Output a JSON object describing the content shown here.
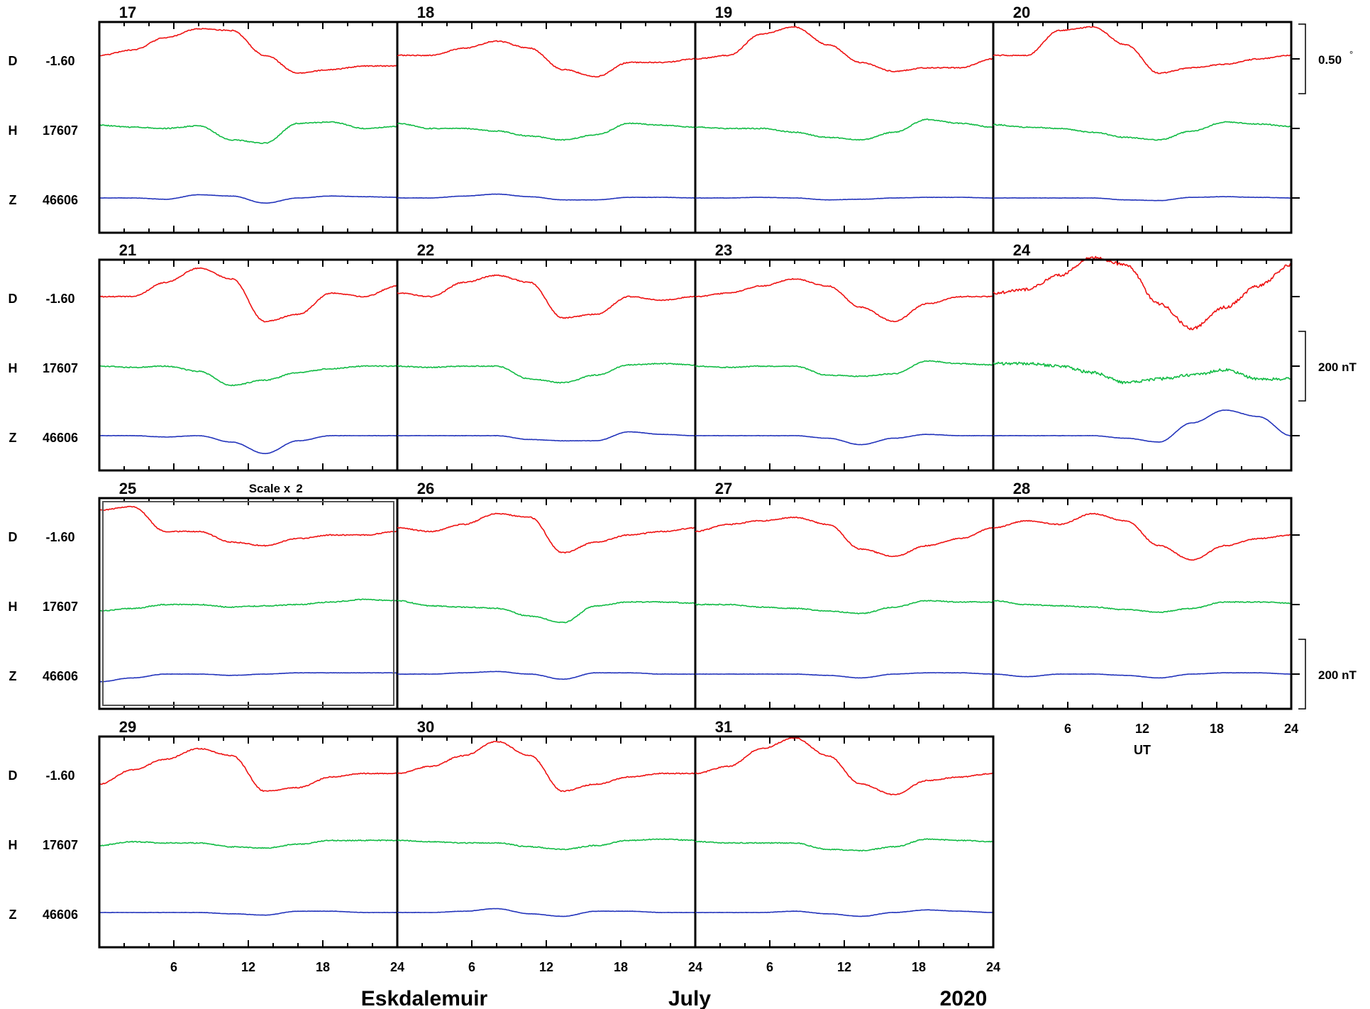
{
  "station": "Eskdalemuir",
  "month": "July",
  "year": "2020",
  "colors": {
    "D": "#ee1111",
    "H": "#11bb44",
    "Z": "#2233bb",
    "axis": "#000000"
  },
  "components": [
    {
      "name": "D",
      "baseline": "-1.60"
    },
    {
      "name": "H",
      "baseline": "17607"
    },
    {
      "name": "Z",
      "baseline": "46606"
    }
  ],
  "scale_bars": [
    {
      "label": "0.50",
      "unit_mark": "°",
      "row": 0,
      "component": "D"
    },
    {
      "label": "200 nT",
      "row": 1,
      "component": "H"
    },
    {
      "label": "200 nT",
      "row": 2,
      "component": "Z"
    }
  ],
  "rows": [
    {
      "days": [
        "17",
        "18",
        "19",
        "20"
      ],
      "show_x_axis": false
    },
    {
      "days": [
        "21",
        "22",
        "23",
        "24"
      ],
      "show_x_axis": false
    },
    {
      "days": [
        "25",
        "26",
        "27",
        "28"
      ],
      "show_x_axis": false
    },
    {
      "days": [
        "29",
        "30",
        "31"
      ],
      "show_x_axis": true
    }
  ],
  "row3_axis": {
    "ticks": [
      "6",
      "12",
      "18",
      "24"
    ],
    "label": "UT"
  },
  "scaled_panel": {
    "day": "25",
    "text": "Scale x",
    "factor": "2"
  },
  "chart_data": {
    "type": "line",
    "title": "Eskdalemuir July 2020",
    "xlabel": "UT",
    "x_unit": "hour of day (UT)",
    "xlim": [
      0,
      24
    ],
    "x_ticks": [
      6,
      12,
      18,
      24
    ],
    "series": [
      {
        "name": "D",
        "baseline": -1.6,
        "unit": "degrees"
      },
      {
        "name": "H",
        "baseline": 17607,
        "unit": "nT"
      },
      {
        "name": "Z",
        "baseline": 46606,
        "unit": "nT"
      }
    ],
    "days": [
      {
        "day": "17",
        "D": [
          0.02,
          0.05,
          0.12,
          0.17,
          0.16,
          0.02,
          -0.08,
          -0.06,
          -0.04,
          -0.04
        ],
        "H": [
          5,
          2,
          0,
          4,
          -18,
          -23,
          8,
          10,
          0,
          3
        ],
        "Z": [
          0,
          0,
          -2,
          5,
          3,
          -8,
          0,
          3,
          2,
          1
        ]
      },
      {
        "day": "18",
        "D": [
          0.02,
          0.02,
          0.06,
          0.1,
          0.06,
          -0.06,
          -0.1,
          -0.02,
          -0.02,
          0.0
        ],
        "H": [
          8,
          0,
          0,
          -4,
          -12,
          -18,
          -10,
          8,
          5,
          2
        ],
        "Z": [
          0,
          0,
          3,
          6,
          2,
          -3,
          -3,
          1,
          1,
          0
        ]
      },
      {
        "day": "19",
        "D": [
          0.0,
          0.02,
          0.14,
          0.18,
          0.08,
          -0.02,
          -0.07,
          -0.05,
          -0.05,
          0.0
        ],
        "H": [
          2,
          0,
          0,
          -6,
          -14,
          -18,
          -6,
          14,
          8,
          2
        ],
        "Z": [
          0,
          0,
          1,
          0,
          -3,
          -2,
          0,
          1,
          1,
          0
        ]
      },
      {
        "day": "20",
        "D": [
          0.02,
          0.02,
          0.16,
          0.18,
          0.08,
          -0.08,
          -0.05,
          -0.03,
          0.0,
          0.02
        ],
        "H": [
          6,
          2,
          0,
          -6,
          -14,
          -18,
          -4,
          10,
          7,
          3
        ],
        "Z": [
          0,
          0,
          0,
          0,
          -3,
          -4,
          1,
          2,
          1,
          0
        ]
      },
      {
        "day": "21",
        "D": [
          0.0,
          0.0,
          0.08,
          0.16,
          0.1,
          -0.14,
          -0.1,
          0.02,
          0.0,
          0.06
        ],
        "H": [
          0,
          -2,
          0,
          -8,
          -30,
          -22,
          -10,
          -4,
          0,
          0
        ],
        "Z": [
          0,
          0,
          -2,
          0,
          -10,
          -28,
          -8,
          0,
          0,
          0
        ]
      },
      {
        "day": "22",
        "D": [
          0.02,
          0.0,
          0.08,
          0.12,
          0.08,
          -0.12,
          -0.1,
          0.0,
          -0.02,
          0.0
        ],
        "H": [
          0,
          -2,
          0,
          0,
          -20,
          -26,
          -14,
          2,
          4,
          2
        ],
        "Z": [
          0,
          0,
          0,
          0,
          -6,
          -8,
          -8,
          6,
          2,
          0
        ]
      },
      {
        "day": "23",
        "D": [
          0.0,
          0.02,
          0.06,
          0.1,
          0.06,
          -0.06,
          -0.14,
          -0.04,
          0.0,
          0.0
        ],
        "H": [
          0,
          -2,
          0,
          0,
          -14,
          -16,
          -12,
          8,
          4,
          2
        ],
        "Z": [
          0,
          0,
          0,
          0,
          -4,
          -14,
          -4,
          2,
          0,
          0
        ]
      },
      {
        "day": "24",
        "D": [
          0.02,
          0.04,
          0.12,
          0.22,
          0.18,
          -0.04,
          -0.18,
          -0.06,
          0.06,
          0.18
        ],
        "H": [
          4,
          4,
          0,
          -10,
          -26,
          -20,
          -14,
          -6,
          -20,
          -20
        ],
        "Z": [
          0,
          0,
          0,
          0,
          -4,
          -10,
          20,
          40,
          30,
          0
        ]
      },
      {
        "day": "25",
        "D": [
          0.14,
          0.16,
          0.02,
          0.02,
          -0.04,
          -0.06,
          -0.02,
          0.0,
          0.0,
          0.02
        ],
        "H": [
          -10,
          -6,
          0,
          0,
          -4,
          -2,
          0,
          4,
          8,
          6
        ],
        "Z": [
          -12,
          -6,
          0,
          0,
          -2,
          0,
          2,
          2,
          2,
          2
        ]
      },
      {
        "day": "26",
        "D": [
          0.04,
          0.02,
          0.06,
          0.12,
          0.1,
          -0.1,
          -0.04,
          0.0,
          0.02,
          0.04
        ],
        "H": [
          6,
          -2,
          -4,
          -6,
          -18,
          -28,
          -2,
          4,
          4,
          2
        ],
        "Z": [
          0,
          0,
          2,
          4,
          0,
          -8,
          2,
          2,
          0,
          0
        ]
      },
      {
        "day": "27",
        "D": [
          0.02,
          0.06,
          0.08,
          0.1,
          0.06,
          -0.08,
          -0.12,
          -0.06,
          -0.02,
          0.04
        ],
        "H": [
          0,
          0,
          -4,
          -6,
          -10,
          -14,
          -4,
          6,
          4,
          4
        ],
        "Z": [
          0,
          0,
          0,
          0,
          -2,
          -6,
          0,
          2,
          2,
          0
        ]
      },
      {
        "day": "28",
        "D": [
          0.04,
          0.08,
          0.06,
          0.12,
          0.08,
          -0.06,
          -0.14,
          -0.06,
          -0.02,
          0.0
        ],
        "H": [
          6,
          0,
          -2,
          -4,
          -8,
          -12,
          -6,
          4,
          4,
          2
        ],
        "Z": [
          0,
          -4,
          0,
          0,
          -2,
          -6,
          0,
          2,
          2,
          0
        ]
      },
      {
        "day": "29",
        "D": [
          -0.06,
          0.02,
          0.08,
          0.14,
          0.1,
          -0.1,
          -0.08,
          -0.02,
          0.0,
          0.0
        ],
        "H": [
          -4,
          2,
          0,
          0,
          -6,
          -8,
          -2,
          4,
          4,
          4
        ],
        "Z": [
          0,
          0,
          0,
          0,
          -2,
          -4,
          2,
          2,
          0,
          0
        ]
      },
      {
        "day": "30",
        "D": [
          0.0,
          0.04,
          0.1,
          0.18,
          0.1,
          -0.1,
          -0.06,
          -0.02,
          0.0,
          0.0
        ],
        "H": [
          4,
          2,
          0,
          0,
          -6,
          -10,
          -4,
          4,
          6,
          4
        ],
        "Z": [
          0,
          0,
          2,
          6,
          -2,
          -6,
          2,
          2,
          0,
          0
        ]
      },
      {
        "day": "31",
        "D": [
          0.0,
          0.04,
          0.14,
          0.2,
          0.1,
          -0.06,
          -0.12,
          -0.04,
          -0.02,
          0.0
        ],
        "H": [
          2,
          0,
          0,
          0,
          -10,
          -12,
          -6,
          6,
          4,
          2
        ],
        "Z": [
          0,
          0,
          0,
          2,
          -2,
          -6,
          0,
          4,
          2,
          0
        ]
      }
    ]
  }
}
